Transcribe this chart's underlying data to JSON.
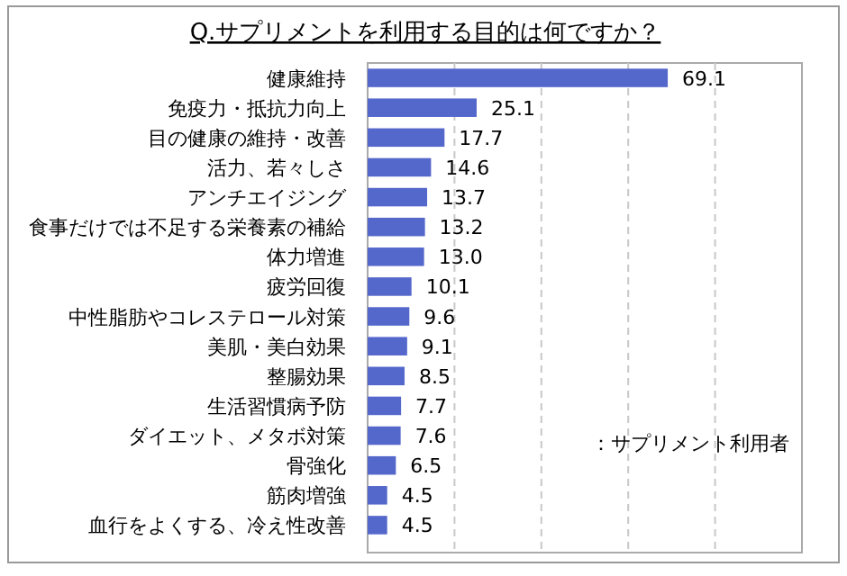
{
  "chart_data": {
    "type": "bar",
    "orientation": "horizontal",
    "title": "Q.サプリメントを利用する目的は何ですか？",
    "categories": [
      "健康維持",
      "免疫力・抵抗力向上",
      "目の健康の維持・改善",
      "活力、若々しさ",
      "アンチエイジング",
      "食事だけでは不足する栄養素の補給",
      "体力増進",
      "疲労回復",
      "中性脂肪やコレステロール対策",
      "美肌・美白効果",
      "整腸効果",
      "生活習慣病予防",
      "ダイエット、メタボ対策",
      "骨強化",
      "筋肉増強",
      "血行をよくする、冷え性改善"
    ],
    "values": [
      69.1,
      25.1,
      17.7,
      14.6,
      13.7,
      13.2,
      13.0,
      10.1,
      9.6,
      9.1,
      8.5,
      7.7,
      7.6,
      6.5,
      4.5,
      4.5
    ],
    "color": "#5468cc",
    "xlim": [
      0,
      100
    ],
    "xticks": [
      {
        "value": 20,
        "label": null
      },
      {
        "value": 40,
        "label": null
      },
      {
        "value": 60,
        "label": null
      },
      {
        "value": 80,
        "label": null
      }
    ],
    "grid": "x",
    "value_labels": [
      "69.1",
      "25.1",
      "17.7",
      "14.6",
      "13.7",
      "13.2",
      "13.0",
      "10.1",
      "9.6",
      "9.1",
      "8.5",
      "7.7",
      "7.6",
      "6.5",
      "4.5",
      "4.5"
    ],
    "annotations": [
      {
        "text": "：サプリメント利用者"
      }
    ]
  }
}
